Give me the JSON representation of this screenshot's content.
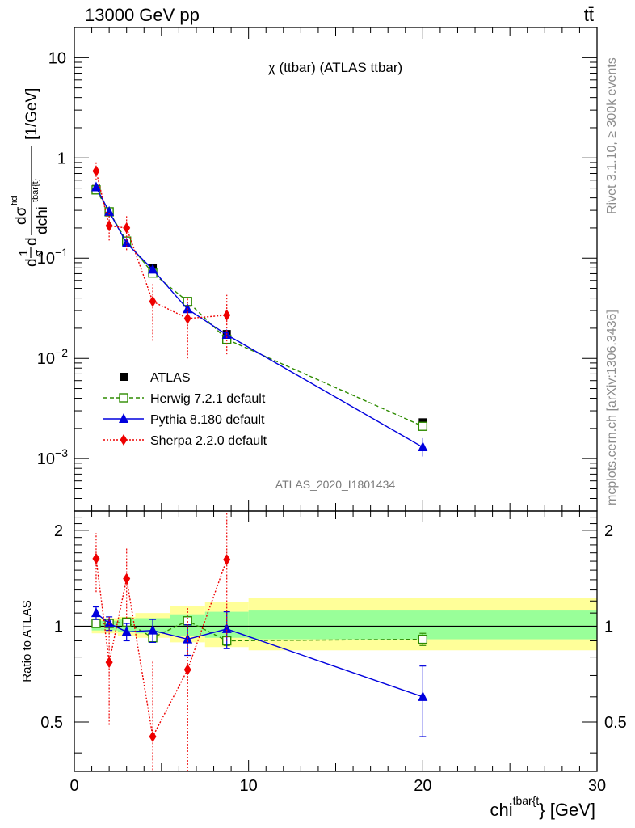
{
  "header": {
    "energy_label": "13000 GeV pp",
    "process_label": "tt̄"
  },
  "side_labels": {
    "rivet": "Rivet 3.1.10, ≥ 300k events",
    "mcplots": "mcplots.cern.ch [arXiv:1306.3436]"
  },
  "colors": {
    "atlas": "#000000",
    "herwig": "#2e8b00",
    "pythia": "#0000dd",
    "sherpa": "#ee0000",
    "band_yellow": "#ffff99",
    "band_green": "#99ff99"
  },
  "chart_data": {
    "type": "scatter",
    "title": "χ (ttbar) (ATLAS ttbar)",
    "analysis_id": "ATLAS_2020_I1801434",
    "xlabel": "chi^{tbar{t}} [GeV]",
    "xlabel_base": "chi",
    "xlabel_sup": "tbar{t",
    "xlabel_tail": "} [GeV]",
    "ylabel": "d(1/σ)dσ^fid/dchi^{tbar{t}} [1/GeV]",
    "ylabel_d1": "d",
    "ylabel_one": "1",
    "ylabel_sigma": "σ",
    "ylabel_d2": "d",
    "ylabel_num": "dσ",
    "ylabel_num_sup": "fid",
    "ylabel_den": "dchi",
    "ylabel_den_sup": "tbar{t}",
    "ylabel_unit": "[1/GeV]",
    "ratio_ylabel": "Ratio to ATLAS",
    "xlim": [
      0,
      30
    ],
    "ylim": [
      0.0003,
      20
    ],
    "ratio_ylim": [
      0.35,
      2.3
    ],
    "y_scale": "log",
    "legend_position": "lower-left",
    "x_ticks": [
      "0",
      "10",
      "20",
      "30"
    ],
    "y_ticks": [
      {
        "base": "10",
        "exp": ""
      },
      {
        "base": "1",
        "exp": ""
      },
      {
        "base": "10",
        "exp": "−1"
      },
      {
        "base": "10",
        "exp": "−2"
      },
      {
        "base": "10",
        "exp": "−3"
      }
    ],
    "ratio_ticks": [
      "2",
      "1",
      "0.5"
    ],
    "bins": [
      [
        1.0,
        1.5
      ],
      [
        1.5,
        2.5
      ],
      [
        2.5,
        3.5
      ],
      [
        3.5,
        5.5
      ],
      [
        5.5,
        7.5
      ],
      [
        7.5,
        10.0
      ],
      [
        10.0,
        30.0
      ]
    ],
    "band_total": [
      [
        0.95,
        1.06
      ],
      [
        0.95,
        1.06
      ],
      [
        0.93,
        1.07
      ],
      [
        0.92,
        1.1
      ],
      [
        0.89,
        1.16
      ],
      [
        0.86,
        1.19
      ],
      [
        0.84,
        1.23
      ]
    ],
    "band_stat": [
      [
        0.97,
        1.04
      ],
      [
        0.97,
        1.04
      ],
      [
        0.96,
        1.05
      ],
      [
        0.95,
        1.06
      ],
      [
        0.93,
        1.09
      ],
      [
        0.92,
        1.11
      ],
      [
        0.91,
        1.12
      ]
    ],
    "series": [
      {
        "name": "ATLAS",
        "x": [
          1.25,
          2.0,
          3.0,
          4.5,
          6.5,
          8.75,
          20.0
        ],
        "y": [
          0.49,
          0.29,
          0.148,
          0.079,
          0.036,
          0.0175,
          0.0023
        ],
        "ratio": [
          1,
          1,
          1,
          1,
          1,
          1,
          1
        ]
      },
      {
        "name": "Herwig 7.2.1 default",
        "x": [
          1.25,
          2.0,
          3.0,
          4.5,
          6.5,
          8.75,
          20.0
        ],
        "y": [
          0.48,
          0.29,
          0.148,
          0.071,
          0.037,
          0.0155,
          0.0021
        ],
        "ratio": [
          1.02,
          1.02,
          1.03,
          0.92,
          1.04,
          0.9,
          0.91
        ],
        "ratio_err": [
          0.02,
          0.02,
          0.03,
          0.03,
          0.03,
          0.03,
          0.04
        ]
      },
      {
        "name": "Pythia 8.180 default",
        "x": [
          1.25,
          2.0,
          3.0,
          4.5,
          6.5,
          8.75,
          20.0
        ],
        "y": [
          0.51,
          0.29,
          0.141,
          0.077,
          0.031,
          0.0172,
          0.0013
        ],
        "ratio": [
          1.1,
          1.02,
          0.96,
          0.97,
          0.91,
          0.98,
          0.6
        ],
        "ratio_err": [
          0.05,
          0.05,
          0.06,
          0.08,
          0.1,
          0.13,
          0.15
        ]
      },
      {
        "name": "Sherpa 2.2.0 default",
        "x": [
          1.25,
          2.0,
          3.0,
          4.5,
          6.5,
          8.75,
          20.0
        ],
        "y": [
          0.74,
          0.21,
          0.2,
          0.037,
          0.025,
          0.027,
          null
        ],
        "ratio": [
          1.63,
          0.77,
          1.41,
          0.45,
          0.73,
          1.62,
          null
        ],
        "ratio_err_lo": [
          0.35,
          0.28,
          0.35,
          0.31,
          0.38,
          0.72,
          null
        ],
        "ratio_err_hi": [
          0.33,
          0.3,
          0.36,
          0.33,
          0.42,
          0.7,
          null
        ]
      }
    ]
  }
}
